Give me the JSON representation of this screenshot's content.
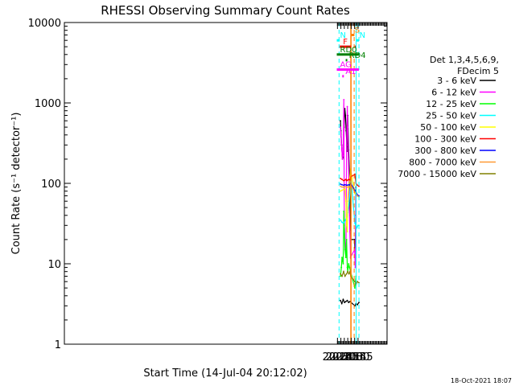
{
  "chart_data": {
    "type": "line",
    "title": "RHESSI Observing Summary Count Rates",
    "xlabel": "Start Time (14-Jul-04 20:12:02)",
    "ylabel": "Count Rate (s⁻¹ detector⁻¹)",
    "ylog": true,
    "ylim": [
      1,
      10000
    ],
    "xlim_minutes": [
      20.2,
      1432.0
    ],
    "x_ticks": [
      "20:15",
      "20:30",
      "20:45",
      "21:00",
      "21:15",
      "21:30",
      "21:45"
    ],
    "y_ticks": [
      "1",
      "10",
      "100",
      "1000",
      "10000"
    ],
    "legend_header": [
      "Det 1,3,4,5,6,9,",
      "FDecim 5"
    ],
    "legend_position": "right",
    "series": [
      {
        "name": "3 - 6 keV",
        "color": "#000000",
        "x": [
          "20:28",
          "20:30",
          "20:33",
          "20:37",
          "20:40",
          "20:44",
          "20:47",
          "20:50",
          "20:53",
          "20:57",
          "21:00",
          "21:04",
          "21:08",
          "21:11",
          "21:13",
          "21:30",
          "21:33",
          "21:35",
          "21:36"
        ],
        "y": [
          600,
          450,
          300,
          200,
          210,
          500,
          850,
          700,
          450,
          250,
          700,
          260,
          120,
          40,
          20,
          20,
          12,
          40,
          90
        ]
      },
      {
        "name": "6 - 12 keV",
        "color": "#ff00ff",
        "x": [
          "20:28",
          "20:31",
          "20:34",
          "20:37",
          "20:39",
          "20:41",
          "20:43",
          "20:45",
          "20:48",
          "20:52",
          "20:55",
          "20:58",
          "21:00",
          "21:03",
          "21:06",
          "21:09",
          "21:12",
          "21:30",
          "21:33",
          "21:35",
          "21:36"
        ],
        "y": [
          500,
          380,
          260,
          200,
          220,
          400,
          1100,
          30,
          18,
          12,
          300,
          900,
          500,
          200,
          60,
          25,
          12,
          15,
          9,
          30,
          70
        ]
      },
      {
        "name": "12 - 25 keV",
        "color": "#00ff00",
        "x": [
          "20:28",
          "20:32",
          "20:35",
          "20:40",
          "20:43",
          "20:48",
          "20:52",
          "20:55",
          "20:58",
          "21:00",
          "21:04",
          "21:08",
          "21:12",
          "21:31",
          "21:36"
        ],
        "y": [
          7,
          9,
          12,
          10,
          45,
          15,
          12,
          20,
          9,
          8,
          10,
          9,
          8,
          5,
          7
        ]
      },
      {
        "name": "25 - 50 keV",
        "color": "#00ffff",
        "x": [
          "20:28",
          "20:34",
          "20:40",
          "20:45",
          "20:50",
          "20:55",
          "21:00",
          "21:05",
          "21:10",
          "21:13",
          "21:31",
          "21:36",
          "21:40",
          "21:45",
          "21:49"
        ],
        "y": [
          35,
          33,
          32,
          33,
          35,
          38,
          43,
          55,
          80,
          130,
          32,
          30,
          28,
          30,
          30
        ]
      },
      {
        "name": "50 - 100 keV",
        "color": "#ffff00",
        "x": [
          "20:28",
          "20:35",
          "20:42",
          "20:48",
          "20:52",
          "20:55",
          "20:58",
          "21:00",
          "21:04",
          "21:08",
          "21:12",
          "21:31",
          "21:36",
          "21:42",
          "21:49"
        ],
        "y": [
          80,
          82,
          84,
          85,
          60,
          30,
          25,
          60,
          90,
          110,
          150,
          75,
          78,
          70,
          68
        ]
      },
      {
        "name": "100 - 300 keV",
        "color": "#ff0000",
        "x": [
          "20:28",
          "20:35",
          "20:42",
          "20:48",
          "20:52",
          "20:56",
          "21:00",
          "21:05",
          "21:10",
          "21:13",
          "21:31",
          "21:36",
          "21:42",
          "21:49"
        ],
        "y": [
          115,
          112,
          108,
          110,
          112,
          108,
          110,
          112,
          110,
          120,
          130,
          100,
          95,
          92
        ]
      },
      {
        "name": "300 - 800 keV",
        "color": "#0000ff",
        "x": [
          "20:28",
          "20:35",
          "20:42",
          "20:48",
          "20:55",
          "21:00",
          "21:05",
          "21:10",
          "21:13",
          "21:31",
          "21:36",
          "21:42",
          "21:49"
        ],
        "y": [
          98,
          96,
          95,
          96,
          95,
          95,
          96,
          95,
          100,
          82,
          78,
          72,
          70
        ]
      },
      {
        "name": "800 - 7000 keV",
        "color": "#ff9933",
        "x": [
          "20:28",
          "20:35",
          "20:42",
          "20:48",
          "20:55",
          "21:00",
          "21:05",
          "21:10",
          "21:13",
          "21:31",
          "21:36",
          "21:42",
          "21:49"
        ],
        "y": [
          92,
          90,
          90,
          91,
          90,
          90,
          91,
          90,
          95,
          78,
          74,
          70,
          68
        ]
      },
      {
        "name": "7000 - 15000 keV",
        "color": "#808000",
        "x": [
          "20:28",
          "20:35",
          "20:42",
          "20:48",
          "20:55",
          "21:00",
          "21:05",
          "21:10",
          "21:13",
          "21:31",
          "21:36",
          "21:42",
          "21:49"
        ],
        "y": [
          7.5,
          7,
          8,
          7,
          7.5,
          8,
          7.5,
          8,
          7,
          6,
          5.5,
          6,
          5.8
        ]
      }
    ],
    "secondary_series": [
      {
        "color": "#000000",
        "x": [
          "20:28",
          "20:34",
          "20:40",
          "20:46",
          "20:52",
          "20:58",
          "21:04",
          "21:10",
          "21:31",
          "21:36",
          "21:42",
          "21:49"
        ],
        "y": [
          3.5,
          3.2,
          3.6,
          3.3,
          3.4,
          3.5,
          3.3,
          3.4,
          3.0,
          3.2,
          3.1,
          3.3
        ]
      }
    ],
    "annotations": [
      {
        "label": "N",
        "color": "#00ffff",
        "x1": "20:12",
        "x2": "20:25",
        "level": 6000
      },
      {
        "label": "N",
        "color": "#00ffff",
        "x1": "21:37",
        "x2": "21:49",
        "level": 6000
      },
      {
        "label": "F",
        "color": "#ff0000",
        "x1": "20:25",
        "x2": "21:14",
        "level": 5000
      },
      {
        "label": "",
        "color": "#ff0000",
        "x1": "21:31",
        "x2": "21:35",
        "level": 5000
      },
      {
        "label": "S",
        "color": "#ff8000",
        "x1": "21:16",
        "x2": "21:29",
        "level": 7000
      },
      {
        "label": "RD0",
        "color": "#008000",
        "x1": "20:12",
        "x2": "21:49",
        "level": 4000
      },
      {
        "label": "RD4",
        "color": "#008000",
        "x1": "20:51",
        "x2": "20:58",
        "level": 3400
      },
      {
        "label": "AG",
        "color": "#ff00ff",
        "x1": "20:12",
        "x2": "21:49",
        "level": 2600
      },
      {
        "label": "A1",
        "color": "#ff00ff",
        "x1": "20:36",
        "x2": "20:43",
        "level": 2150
      }
    ],
    "vlines": [
      {
        "x": "20:22",
        "color": "#00ffff",
        "dash": true
      },
      {
        "x": "21:13",
        "color": "#ff8000",
        "dash": false
      },
      {
        "x": "21:15",
        "color": "#ff8000",
        "dash": false
      },
      {
        "x": "21:28",
        "color": "#ff8000",
        "dash": true
      },
      {
        "x": "21:37",
        "color": "#00ffff",
        "dash": false
      },
      {
        "x": "21:49",
        "color": "#00ffff",
        "dash": true
      }
    ]
  },
  "footer": {
    "timestamp": "18-Oct-2021 18:07"
  }
}
